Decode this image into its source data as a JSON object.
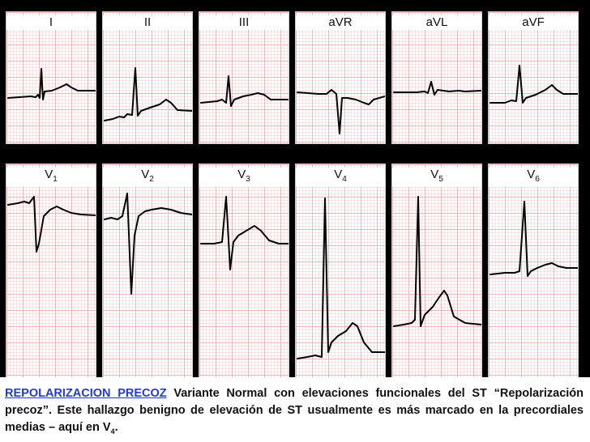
{
  "leads_row1": [
    "I",
    "II",
    "III",
    "aVR",
    "aVL",
    "aVF"
  ],
  "leads_row2": [
    {
      "base": "V",
      "sub": "1"
    },
    {
      "base": "V",
      "sub": "2"
    },
    {
      "base": "V",
      "sub": "3"
    },
    {
      "base": "V",
      "sub": "4"
    },
    {
      "base": "V",
      "sub": "5"
    },
    {
      "base": "V",
      "sub": "6"
    }
  ],
  "caption": {
    "title": "REPOLARIZACION PRECOZ",
    "text": "  Variante Normal con elevaciones funcionales del ST “Repolarización precoz”. Este hallazgo benigno de elevación de ST usualmente es más marcado en la precordiales medias – aquí en V",
    "sub": "4",
    "end": "."
  },
  "colors": {
    "background": "#000000",
    "title": "#1f3bd6",
    "grid": "#e19696",
    "trace": "#000000"
  }
}
